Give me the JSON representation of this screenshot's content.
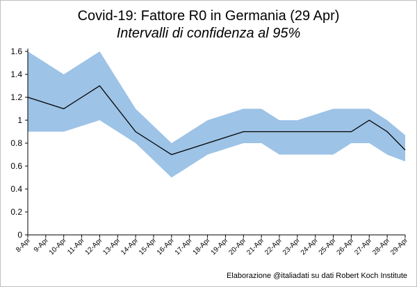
{
  "chart_data": {
    "type": "area",
    "title": "Covid-19: Fattore R0 in Germania (29 Apr)",
    "subtitle": "Intervalli di confidenza al 95%",
    "source": "Elaborazione @italiadati su dati Robert Koch Institute",
    "xlabel": "",
    "ylabel": "",
    "ylim": [
      0,
      1.6
    ],
    "yticks": [
      "0",
      "0.2",
      "0.4",
      "0.6",
      "0.8",
      "1",
      "1.2",
      "1.4",
      "1.6"
    ],
    "grid": false,
    "legend": "none",
    "categories": [
      "8-Apr",
      "9-Apr",
      "10-Apr",
      "11-Apr",
      "12-Apr",
      "13-Apr",
      "14-Apr",
      "15-Apr",
      "16-Apr",
      "17-Apr",
      "18-Apr",
      "19-Apr",
      "20-Apr",
      "21-Apr",
      "22-Apr",
      "23-Apr",
      "24-Apr",
      "25-Apr",
      "26-Apr",
      "27-Apr",
      "28-Apr",
      "29-Apr"
    ],
    "series": [
      {
        "values": [
          1.2,
          1.15,
          1.1,
          1.2,
          1.3,
          1.1,
          0.9,
          0.8,
          0.7,
          0.75,
          0.8,
          0.85,
          0.9,
          0.9,
          0.9,
          0.9,
          0.9,
          0.9,
          0.9,
          1.0,
          0.9,
          0.74
        ]
      },
      {
        "values": [
          0.9,
          0.9,
          0.9,
          0.95,
          1.0,
          0.9,
          0.8,
          0.65,
          0.5,
          0.6,
          0.7,
          0.75,
          0.8,
          0.8,
          0.7,
          0.7,
          0.7,
          0.7,
          0.8,
          0.8,
          0.7,
          0.64
        ]
      },
      {
        "values": [
          1.6,
          1.5,
          1.4,
          1.5,
          1.6,
          1.35,
          1.1,
          0.95,
          0.8,
          0.9,
          1.0,
          1.05,
          1.1,
          1.1,
          1.0,
          1.0,
          1.05,
          1.1,
          1.1,
          1.1,
          1.0,
          0.87
        ]
      }
    ],
    "colors": {
      "band": "#9dc3e6",
      "line": "#000000",
      "axis": "#000000"
    }
  }
}
